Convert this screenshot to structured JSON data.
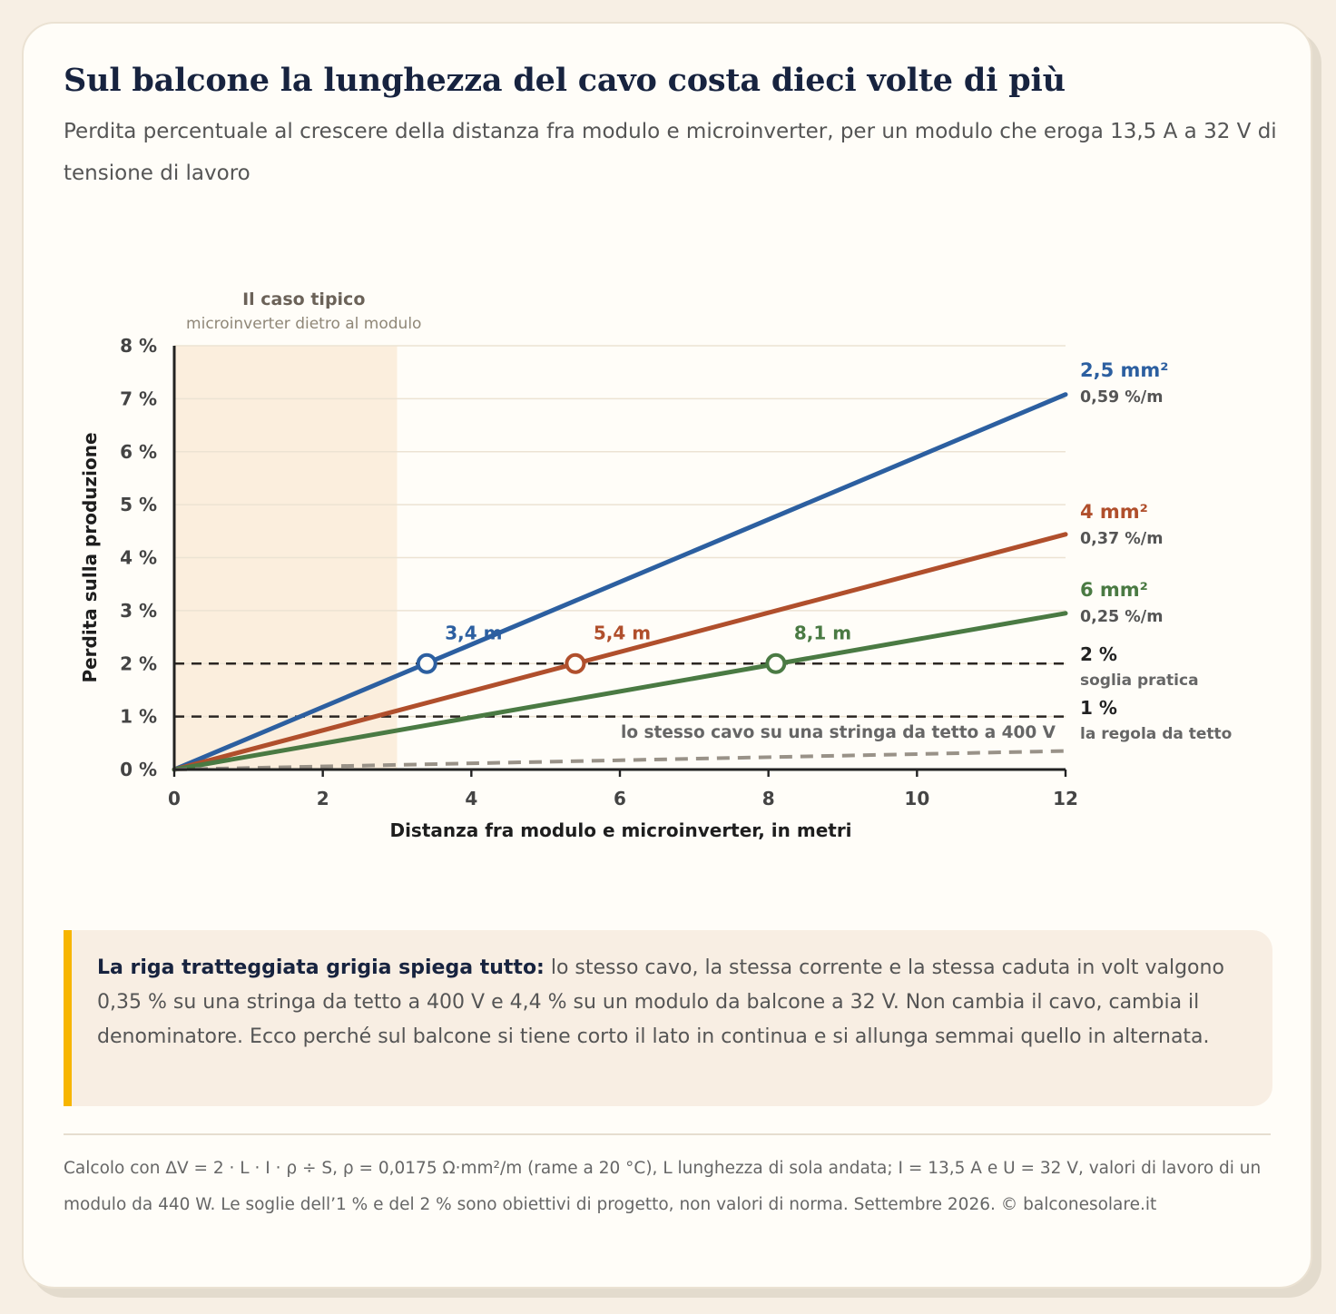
{
  "header": {
    "title": "Sul balcone la lunghezza del cavo costa dieci volte di più",
    "subtitle": "Perdita percentuale al crescere della distanza fra modulo e microinverter, per un modulo che eroga 13,5 A a 32 V di tensione di lavoro"
  },
  "chart_data": {
    "type": "line",
    "xlabel": "Distanza fra modulo e microinverter, in metri",
    "ylabel": "Perdita sulla produzione",
    "xlim": [
      0,
      12
    ],
    "ylim": [
      0,
      8
    ],
    "x_ticks": [
      0,
      2,
      4,
      6,
      8,
      10,
      12
    ],
    "x_tick_labels": [
      "0",
      "2",
      "4",
      "6",
      "8",
      "10",
      "12"
    ],
    "y_ticks": [
      0,
      1,
      2,
      3,
      4,
      5,
      6,
      7,
      8
    ],
    "y_tick_labels": [
      "0 %",
      "1 %",
      "2 %",
      "3 %",
      "4 %",
      "5 %",
      "6 %",
      "7 %",
      "8 %"
    ],
    "grid": "horizontal",
    "legend": "direct labels at right end of lines",
    "series": [
      {
        "name": "2,5 mm²",
        "rate_label": "0,59 %/m",
        "color": "#2c5fa0",
        "x": [
          0,
          12
        ],
        "y": [
          0,
          7.08
        ]
      },
      {
        "name": "4 mm²",
        "rate_label": "0,37 %/m",
        "color": "#b04f2c",
        "x": [
          0,
          12
        ],
        "y": [
          0,
          4.44
        ]
      },
      {
        "name": "6 mm²",
        "rate_label": "0,25 %/m",
        "color": "#4a7a43",
        "x": [
          0,
          12
        ],
        "y": [
          0,
          2.95
        ]
      },
      {
        "name": "lo stesso cavo su una stringa da tetto a 400 V",
        "color": "#999288",
        "dashed": true,
        "x": [
          0,
          12
        ],
        "y": [
          0,
          0.35
        ]
      }
    ],
    "thresholds": [
      {
        "y": 2,
        "label": "2 %",
        "sublabel": "soglia pratica"
      },
      {
        "y": 1,
        "label": "1 %",
        "sublabel": "la regola da tetto"
      }
    ],
    "crossings": [
      {
        "x": 3.4,
        "y": 2,
        "label": "3,4 m",
        "color": "#2c5fa0"
      },
      {
        "x": 5.4,
        "y": 2,
        "label": "5,4 m",
        "color": "#b04f2c"
      },
      {
        "x": 8.1,
        "y": 2,
        "label": "8,1 m",
        "color": "#4a7a43"
      }
    ],
    "highlight_region": {
      "x0": 0,
      "x1": 3,
      "title": "Il caso tipico",
      "subtitle": "microinverter dietro al modulo",
      "color": "#fbeedd"
    }
  },
  "callout": {
    "lead": "La riga tratteggiata grigia spiega tutto:",
    "text": " lo stesso cavo, la stessa corrente e la stessa caduta in volt valgono 0,35 % su una stringa da tetto a 400 V e 4,4 % su un modulo da balcone a 32 V. Non cambia il cavo, cambia il denominatore. Ecco perché sul balcone si tiene corto il lato in continua e si allunga semmai quello in alternata."
  },
  "footer": {
    "text": "Calcolo con ΔV = 2 · L · I · ρ ÷ S, ρ = 0,0175 Ω·mm²/m (rame a 20 °C), L lunghezza di sola andata; I = 13,5 A e U = 32 V, valori di lavoro di un modulo da 440 W. Le soglie dell’1 % e del 2 % sono obiettivi di progetto, non valori di norma. Settembre 2026. © balconesolare.it"
  }
}
